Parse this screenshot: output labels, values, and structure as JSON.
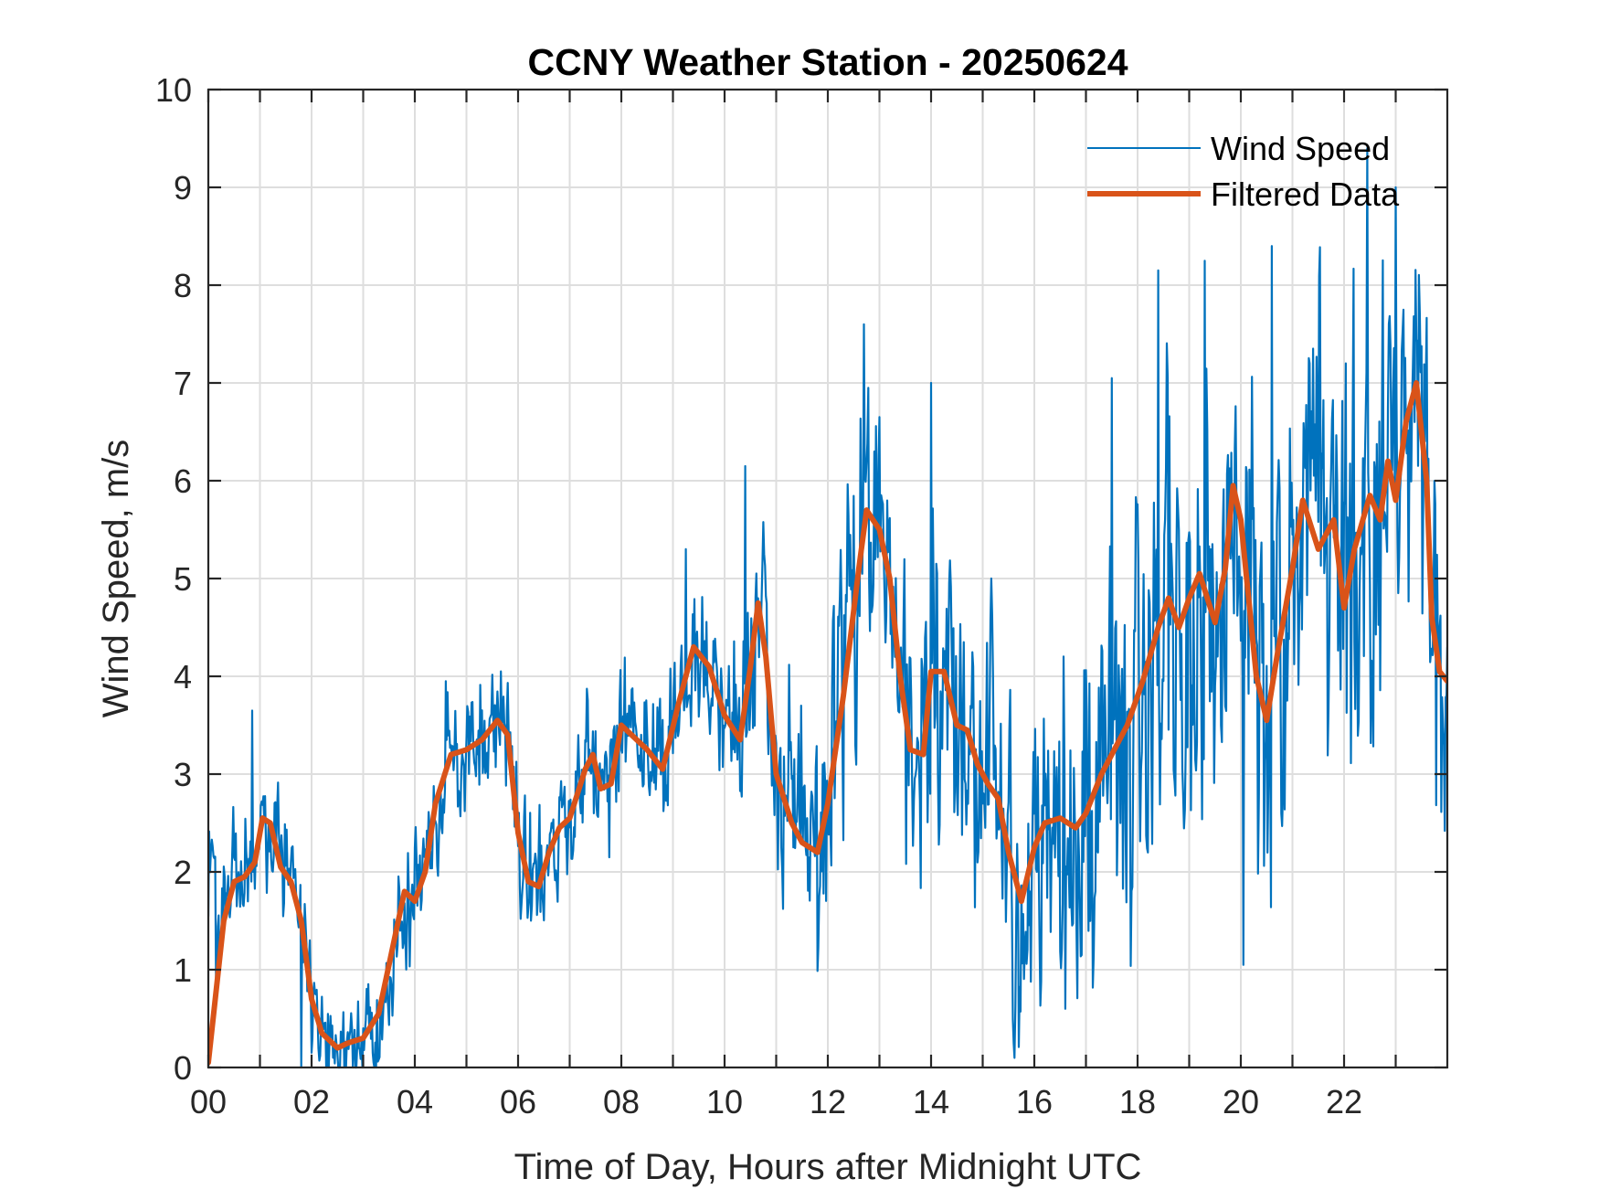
{
  "chart_data": {
    "type": "line",
    "title": "CCNY Weather Station - 20250624",
    "xlabel": "Time of Day, Hours after Midnight UTC",
    "ylabel": "Wind Speed, m/s",
    "xlim": [
      0,
      24
    ],
    "ylim": [
      0,
      10
    ],
    "grid": true,
    "x_ticks": [
      0,
      2,
      4,
      6,
      8,
      10,
      12,
      14,
      16,
      18,
      20,
      22
    ],
    "x_tick_labels": [
      "00",
      "02",
      "04",
      "06",
      "08",
      "10",
      "12",
      "14",
      "16",
      "18",
      "20",
      "22"
    ],
    "x_minor_ticks_hours": [
      1,
      3,
      5,
      7,
      9,
      11,
      13,
      15,
      17,
      19,
      21,
      23
    ],
    "y_ticks": [
      0,
      1,
      2,
      3,
      4,
      5,
      6,
      7,
      8,
      9,
      10
    ],
    "y_tick_labels": [
      "0",
      "1",
      "2",
      "3",
      "4",
      "5",
      "6",
      "7",
      "8",
      "9",
      "10"
    ],
    "legend": {
      "placement": "top-right",
      "entries": [
        {
          "label": "Wind Speed",
          "color": "#0072BD",
          "series": "wind_speed"
        },
        {
          "label": "Filtered Data",
          "color": "#D95319",
          "series": "filtered"
        }
      ]
    },
    "series": [
      {
        "name": "Filtered Data",
        "id": "filtered",
        "color": "#D95319",
        "x": [
          0,
          0.3,
          0.5,
          0.7,
          0.9,
          1.05,
          1.2,
          1.4,
          1.6,
          1.8,
          2.0,
          2.2,
          2.5,
          2.7,
          3.0,
          3.3,
          3.6,
          3.8,
          4.0,
          4.2,
          4.4,
          4.7,
          5.0,
          5.3,
          5.6,
          5.8,
          6.0,
          6.2,
          6.4,
          6.6,
          6.8,
          7.0,
          7.3,
          7.45,
          7.6,
          7.8,
          8.0,
          8.2,
          8.5,
          8.8,
          9.1,
          9.4,
          9.7,
          10.0,
          10.3,
          10.5,
          10.65,
          10.8,
          11.0,
          11.3,
          11.5,
          11.8,
          12.0,
          12.3,
          12.6,
          12.75,
          13.0,
          13.2,
          13.4,
          13.6,
          13.85,
          14.0,
          14.25,
          14.5,
          14.7,
          14.9,
          15.1,
          15.3,
          15.5,
          15.75,
          16.0,
          16.2,
          16.5,
          16.8,
          17.0,
          17.3,
          17.6,
          17.8,
          18.1,
          18.4,
          18.6,
          18.8,
          19.0,
          19.2,
          19.5,
          19.7,
          19.85,
          20.0,
          20.3,
          20.5,
          20.7,
          21.0,
          21.2,
          21.5,
          21.8,
          22.0,
          22.2,
          22.5,
          22.7,
          22.85,
          23.0,
          23.2,
          23.4,
          23.6,
          23.7,
          23.85,
          24.0
        ],
        "y": [
          0.05,
          1.5,
          1.9,
          1.95,
          2.1,
          2.55,
          2.5,
          2.05,
          1.9,
          1.5,
          0.7,
          0.35,
          0.2,
          0.25,
          0.3,
          0.55,
          1.3,
          1.8,
          1.7,
          2.0,
          2.7,
          3.2,
          3.25,
          3.35,
          3.55,
          3.4,
          2.4,
          1.9,
          1.85,
          2.2,
          2.45,
          2.55,
          3.05,
          3.2,
          2.85,
          2.9,
          3.5,
          3.4,
          3.25,
          3.05,
          3.7,
          4.3,
          4.1,
          3.6,
          3.35,
          4.1,
          4.75,
          4.2,
          3.0,
          2.5,
          2.3,
          2.2,
          2.7,
          3.8,
          5.1,
          5.7,
          5.5,
          5.0,
          4.0,
          3.25,
          3.2,
          4.05,
          4.05,
          3.5,
          3.45,
          3.1,
          2.9,
          2.75,
          2.2,
          1.7,
          2.25,
          2.5,
          2.55,
          2.45,
          2.6,
          3.0,
          3.3,
          3.5,
          3.95,
          4.5,
          4.8,
          4.5,
          4.8,
          5.05,
          4.55,
          5.1,
          5.95,
          5.6,
          4.0,
          3.55,
          4.2,
          5.1,
          5.8,
          5.3,
          5.6,
          4.7,
          5.3,
          5.85,
          5.6,
          6.2,
          5.8,
          6.6,
          7.0,
          6.0,
          4.6,
          4.05,
          3.95
        ]
      },
      {
        "name": "Wind Speed",
        "id": "wind_speed",
        "color": "#0072BD",
        "sampling_minutes": 1,
        "description": "Raw 1-minute wind speed fluctuating around the filtered curve; spread grows from about ±0.6 m/s early in the day to about ±2.5 m/s after 17 h",
        "noise_amplitude_by_hour": {
          "x": [
            0,
            2,
            4,
            6,
            8,
            10,
            12,
            14,
            16,
            17,
            20,
            22,
            24
          ],
          "y": [
            0.6,
            0.45,
            0.6,
            0.55,
            0.6,
            0.75,
            1.2,
            1.3,
            1.3,
            1.8,
            2.2,
            2.3,
            1.6
          ]
        },
        "notable_peaks": [
          {
            "x": 0.85,
            "y": 3.65
          },
          {
            "x": 4.6,
            "y": 3.95
          },
          {
            "x": 9.25,
            "y": 5.3
          },
          {
            "x": 10.4,
            "y": 6.15
          },
          {
            "x": 12.7,
            "y": 7.6
          },
          {
            "x": 14.0,
            "y": 7.0
          },
          {
            "x": 17.5,
            "y": 7.05
          },
          {
            "x": 18.4,
            "y": 8.15
          },
          {
            "x": 19.3,
            "y": 8.25
          },
          {
            "x": 20.6,
            "y": 8.4
          },
          {
            "x": 22.45,
            "y": 9.4
          },
          {
            "x": 23.0,
            "y": 9.0
          }
        ],
        "notable_minima": [
          {
            "x": 1.8,
            "y": 0.0
          },
          {
            "x": 2.8,
            "y": 0.0
          },
          {
            "x": 15.6,
            "y": 0.25
          },
          {
            "x": 16.6,
            "y": 0.6
          },
          {
            "x": 20.05,
            "y": 1.05
          }
        ]
      }
    ]
  }
}
